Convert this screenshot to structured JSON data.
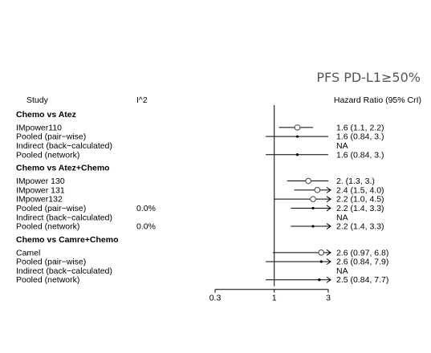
{
  "chart_data": {
    "type": "forest",
    "title": "PFS PD-L1≥50%",
    "columns": {
      "study": "Study",
      "i2": "I^2",
      "estimate": "Hazard Ratio (95% CrI)"
    },
    "x_axis": {
      "scale": "log",
      "ticks": [
        "0.3",
        "1",
        "3"
      ],
      "tick_values": [
        0.3,
        1,
        3
      ],
      "xlim": [
        0.3,
        3
      ],
      "reference_line": 1
    },
    "groups": [
      {
        "heading": "Chemo vs Atez",
        "rows": [
          {
            "study": "IMpower110",
            "i2": "",
            "hr": 1.6,
            "lo": 1.1,
            "hi": 2.2,
            "label": "1.6 (1.1, 2.2)",
            "marker": "circle"
          },
          {
            "study": "Pooled (pair−wise)",
            "i2": "",
            "hr": 1.6,
            "lo": 0.84,
            "hi": 3.0,
            "label": "1.6 (0.84, 3.)",
            "marker": "dot"
          },
          {
            "study": "Indirect (back−calculated)",
            "i2": "",
            "hr": null,
            "lo": null,
            "hi": null,
            "label": "NA",
            "marker": "none"
          },
          {
            "study": "Pooled (network)",
            "i2": "",
            "hr": 1.6,
            "lo": 0.84,
            "hi": 3.0,
            "label": "1.6 (0.84,  3.)",
            "marker": "dot"
          }
        ]
      },
      {
        "heading": "Chemo vs Atez+Chemo",
        "rows": [
          {
            "study": "IMpower 130",
            "i2": "",
            "hr": 2.0,
            "lo": 1.3,
            "hi": 3.0,
            "label": "2. (1.3,  3.)",
            "marker": "circle"
          },
          {
            "study": "IMpower 131",
            "i2": "",
            "hr": 2.4,
            "lo": 1.5,
            "hi": 4.0,
            "label": "2.4 (1.5, 4.0)",
            "marker": "circle"
          },
          {
            "study": "IMpower132",
            "i2": "",
            "hr": 2.2,
            "lo": 1.0,
            "hi": 4.5,
            "label": "2.2 (1.0, 4.5)",
            "marker": "circle"
          },
          {
            "study": "Pooled (pair−wise)",
            "i2": "0.0%",
            "hr": 2.2,
            "lo": 1.4,
            "hi": 3.3,
            "label": "2.2 (1.4, 3.3)",
            "marker": "dot"
          },
          {
            "study": "Indirect (back−calculated)",
            "i2": "",
            "hr": null,
            "lo": null,
            "hi": null,
            "label": "NA",
            "marker": "none"
          },
          {
            "study": "Pooled (network)",
            "i2": "0.0%",
            "hr": 2.2,
            "lo": 1.4,
            "hi": 3.3,
            "label": "2.2 (1.4, 3.3)",
            "marker": "dot"
          }
        ]
      },
      {
        "heading": "Chemo vs Camre+Chemo",
        "rows": [
          {
            "study": "Camel",
            "i2": "",
            "hr": 2.6,
            "lo": 0.97,
            "hi": 6.8,
            "label": "2.6 (0.97, 6.8)",
            "marker": "circle"
          },
          {
            "study": "Pooled (pair−wise)",
            "i2": "",
            "hr": 2.6,
            "lo": 0.84,
            "hi": 7.9,
            "label": "2.6 (0.84, 7.9)",
            "marker": "dot"
          },
          {
            "study": "Indirect (back−calculated)",
            "i2": "",
            "hr": null,
            "lo": null,
            "hi": null,
            "label": "NA",
            "marker": "none"
          },
          {
            "study": "Pooled (network)",
            "i2": "",
            "hr": 2.5,
            "lo": 0.84,
            "hi": 7.7,
            "label": "2.5 (0.84, 7.7)",
            "marker": "dot"
          }
        ]
      }
    ]
  }
}
